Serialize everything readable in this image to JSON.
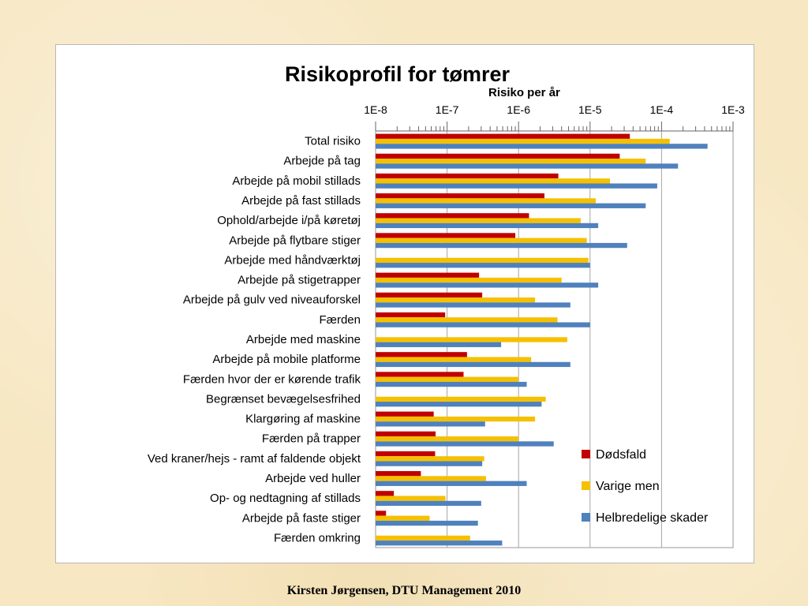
{
  "footer": "Kirsten Jørgensen, DTU Management 2010",
  "chart_data": {
    "type": "bar",
    "orientation": "horizontal",
    "title": "Risikoprofil for tømrer",
    "xlabel": "Risiko per år",
    "x_scale": "log",
    "xlim": [
      1e-08,
      0.001
    ],
    "x_ticks": [
      "1E-8",
      "1E-7",
      "1E-6",
      "1E-5",
      "1E-4",
      "1E-3"
    ],
    "x_tick_values": [
      1e-08,
      1e-07,
      1e-06,
      1e-05,
      0.0001,
      0.001
    ],
    "grid": "vertical lines at each decade",
    "legend_position": "bottom-right",
    "categories": [
      "Total risiko",
      "Arbejde på tag",
      "Arbejde på mobil stillads",
      "Arbejde på fast stillads",
      "Ophold/arbejde i/på køretøj",
      "Arbejde på flytbare stiger",
      "Arbejde med håndværktøj",
      "Arbejde på stigetrapper",
      "Arbejde på gulv ved niveauforskel",
      "Færden",
      "Arbejde med maskine",
      "Arbejde på mobile platforme",
      "Færden hvor der er kørende trafik",
      "Begrænset bevægelsesfrihed",
      "Klargøring af maskine",
      "Færden på trapper",
      "Ved kraner/hejs - ramt af faldende objekt",
      "Arbejde ved huller",
      "Op- og nedtagning af stillads",
      "Arbejde på faste stiger",
      "Færden omkring"
    ],
    "series": [
      {
        "name": "Dødsfald",
        "color": "#c00000",
        "values": [
          3.6e-05,
          2.6e-05,
          3.6e-06,
          2.3e-06,
          1.4e-06,
          9e-07,
          null,
          2.8e-07,
          3.1e-07,
          9.4e-08,
          null,
          1.9e-07,
          1.7e-07,
          null,
          6.5e-08,
          6.9e-08,
          6.8e-08,
          4.3e-08,
          1.8e-08,
          1.4e-08,
          null
        ]
      },
      {
        "name": "Varige men",
        "color": "#f5c000",
        "values": [
          0.00013,
          6e-05,
          1.9e-05,
          1.2e-05,
          7.4e-06,
          9e-06,
          9.5e-06,
          4e-06,
          1.7e-06,
          3.5e-06,
          4.8e-06,
          1.5e-06,
          1e-06,
          2.4e-06,
          1.7e-06,
          1e-06,
          3.3e-07,
          3.5e-07,
          9.5e-08,
          5.7e-08,
          2.1e-07
        ]
      },
      {
        "name": "Helbredelige skader",
        "color": "#4f81bd",
        "values": [
          0.00044,
          0.00017,
          8.7e-05,
          6e-05,
          1.3e-05,
          3.3e-05,
          1e-05,
          1.3e-05,
          5.3e-06,
          1e-05,
          5.7e-07,
          5.3e-06,
          1.3e-06,
          2.1e-06,
          3.4e-07,
          3.1e-06,
          3.1e-07,
          1.3e-06,
          3e-07,
          2.7e-07,
          5.9e-07
        ]
      }
    ]
  }
}
